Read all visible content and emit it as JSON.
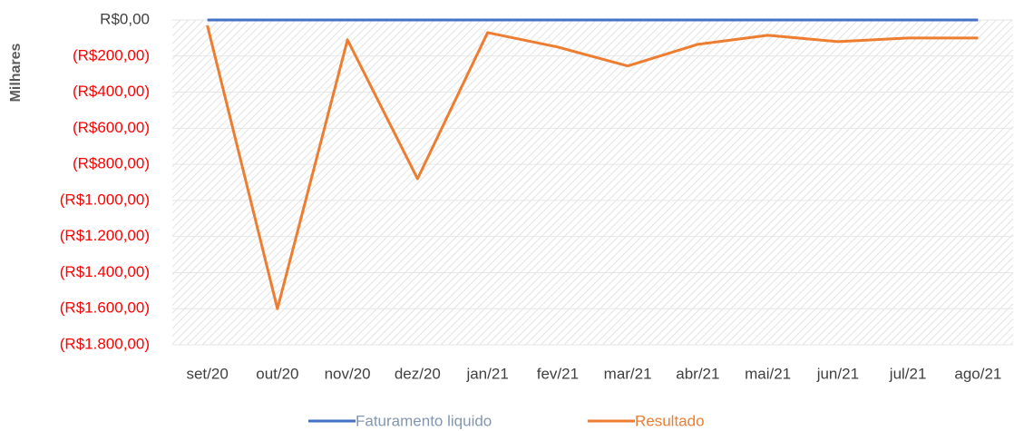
{
  "chart_data": {
    "type": "line",
    "y_axis_label": "Milhares",
    "categories": [
      "set/20",
      "out/20",
      "nov/20",
      "dez/20",
      "jan/21",
      "fev/21",
      "mar/21",
      "abr/21",
      "mai/21",
      "jun/21",
      "jul/21",
      "ago/21"
    ],
    "series": [
      {
        "name": "Faturamento liquido",
        "color": "#4472c4",
        "values": [
          0,
          0,
          0,
          0,
          0,
          0,
          0,
          0,
          0,
          0,
          0,
          0
        ]
      },
      {
        "name": "Resultado",
        "color": "#ed7d31",
        "values": [
          -30,
          -1600,
          -110,
          -880,
          -70,
          -150,
          -255,
          -135,
          -85,
          -120,
          -100,
          -100
        ]
      }
    ],
    "ylim": [
      -1800,
      0
    ],
    "yticks": [
      {
        "value": 0,
        "label": "R$0,00"
      },
      {
        "value": -200,
        "label": "(R$200,00)"
      },
      {
        "value": -400,
        "label": "(R$400,00)"
      },
      {
        "value": -600,
        "label": "(R$600,00)"
      },
      {
        "value": -800,
        "label": "(R$800,00)"
      },
      {
        "value": -1000,
        "label": "(R$1.000,00)"
      },
      {
        "value": -1200,
        "label": "(R$1.200,00)"
      },
      {
        "value": -1400,
        "label": "(R$1.400,00)"
      },
      {
        "value": -1600,
        "label": "(R$1.600,00)"
      },
      {
        "value": -1800,
        "label": "(R$1.800,00)"
      }
    ],
    "negative_tick_color": "#ff0000",
    "grid": true,
    "legend_position": "bottom"
  }
}
